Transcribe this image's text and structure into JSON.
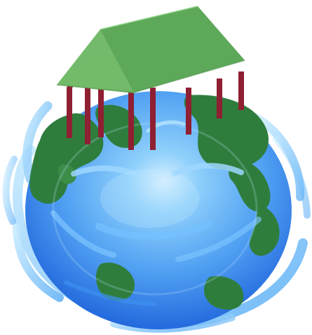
{
  "illustration": {
    "colors": {
      "background": "#ffffff",
      "ocean_light": "#8fd0fb",
      "ocean_mid": "#4f9ff2",
      "ocean_dark": "#1557d6",
      "land": "#2f7d3d",
      "land_dark": "#1f6a33",
      "roof": "#6fb566",
      "roof_dark": "#4e9d4d",
      "posts": "#8f1f32",
      "water_rings": "#58b9ff",
      "water_rings_light": "#a7ddff"
    },
    "icons": [
      "globe-icon",
      "house-on-stilts-icon",
      "water-swirl-icon"
    ]
  }
}
